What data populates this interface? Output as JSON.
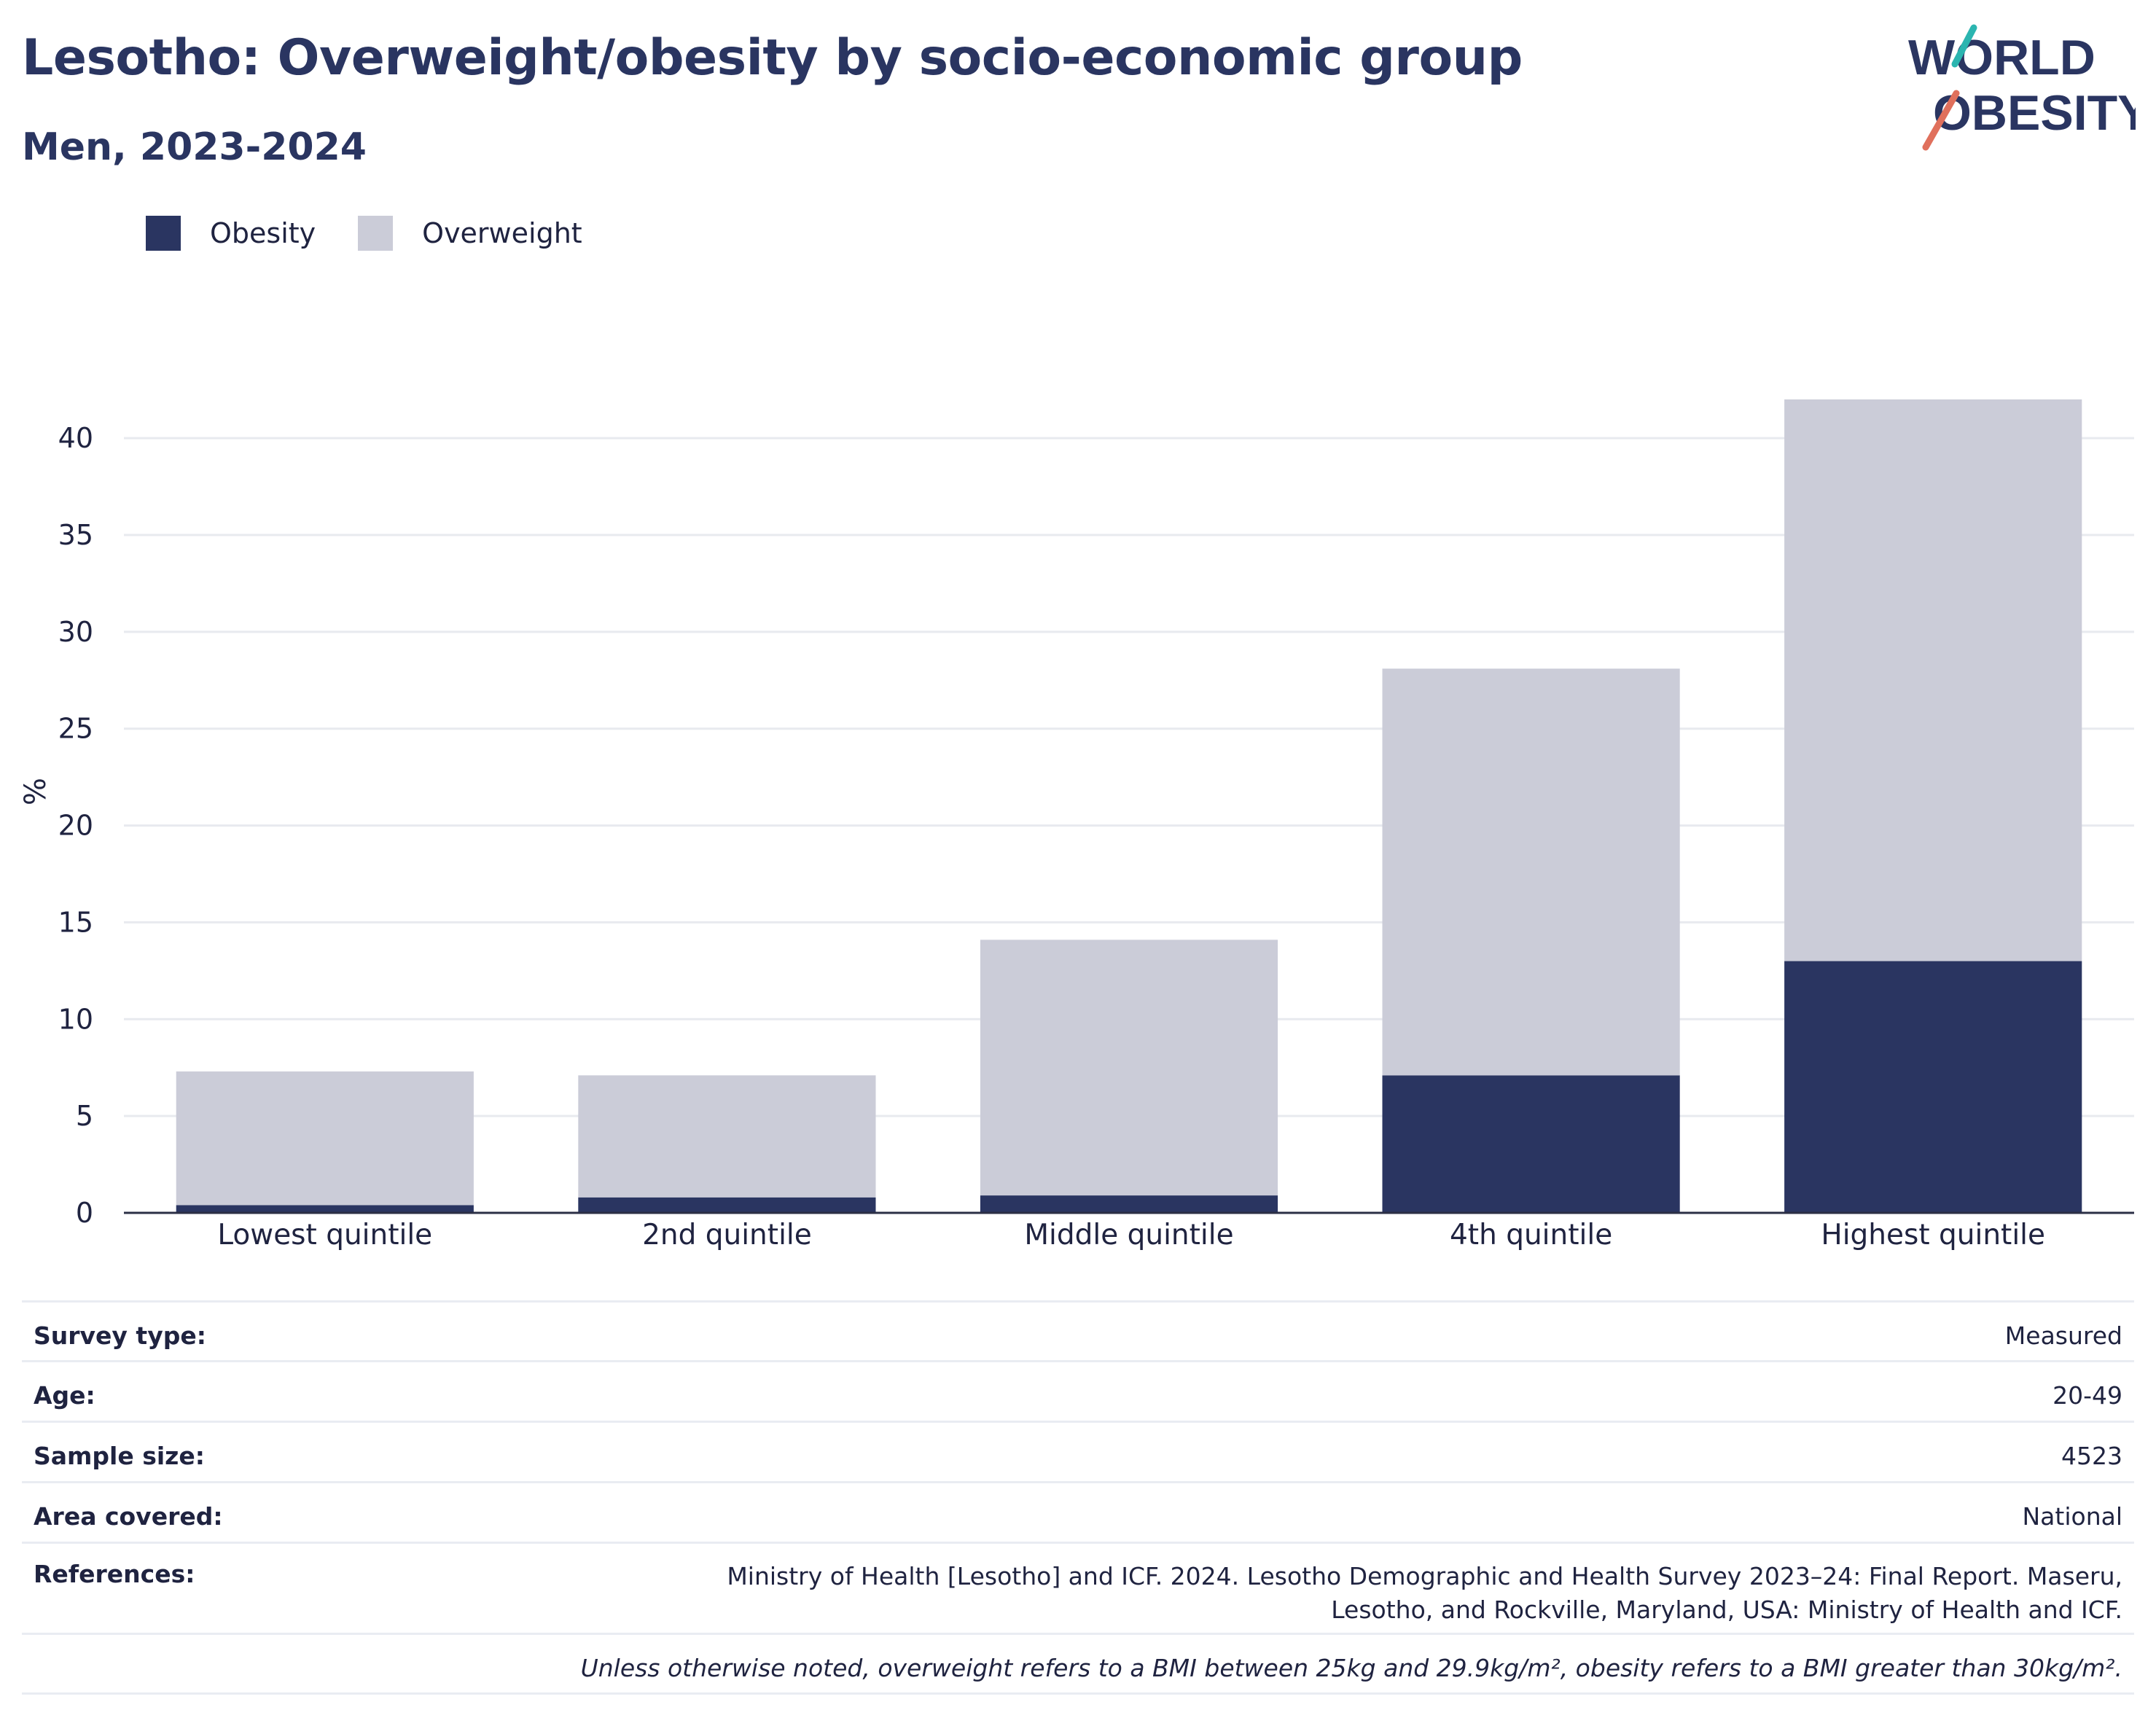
{
  "title": "Lesotho: Overweight/obesity by socio-economic group",
  "subtitle": "Men, 2023-2024",
  "logo": {
    "line1": "WORLD",
    "line2": "OBESITY"
  },
  "colors": {
    "obesity": "#2a3561",
    "overweight": "#cbccd8",
    "title": "#2a3561",
    "logo_slash_top": "#2bb5b0",
    "logo_slash_bottom": "#e0705c"
  },
  "legend": [
    {
      "label": "Obesity",
      "color": "#2a3561"
    },
    {
      "label": "Overweight",
      "color": "#cbccd8"
    }
  ],
  "chart_data": {
    "type": "bar",
    "stacked": true,
    "categories": [
      "Lowest quintile",
      "2nd quintile",
      "Middle quintile",
      "4th quintile",
      "Highest quintile"
    ],
    "series": [
      {
        "name": "Obesity",
        "values": [
          0.4,
          0.8,
          0.9,
          7.1,
          13.0
        ]
      },
      {
        "name": "Overweight",
        "values": [
          6.9,
          6.3,
          13.2,
          21.0,
          29.0
        ]
      }
    ],
    "ylabel": "%",
    "ylim": [
      0,
      42
    ],
    "yticks": [
      0,
      5,
      10,
      15,
      20,
      25,
      30,
      35,
      40
    ],
    "grid": true,
    "legend_position": "top-left"
  },
  "meta": {
    "survey_type": {
      "label": "Survey type:",
      "value": "Measured"
    },
    "age": {
      "label": "Age:",
      "value": "20-49"
    },
    "sample_size": {
      "label": "Sample size:",
      "value": "4523"
    },
    "area": {
      "label": "Area covered:",
      "value": "National"
    },
    "references": {
      "label": "References:",
      "value": "Ministry of Health [Lesotho] and ICF. 2024. Lesotho Demographic and Health Survey 2023–24: Final Report. Maseru, Lesotho, and Rockville, Maryland, USA: Ministry of Health and ICF."
    },
    "note": "Unless otherwise noted, overweight refers to a BMI between 25kg and 29.9kg/m², obesity refers to a BMI greater than 30kg/m²."
  }
}
